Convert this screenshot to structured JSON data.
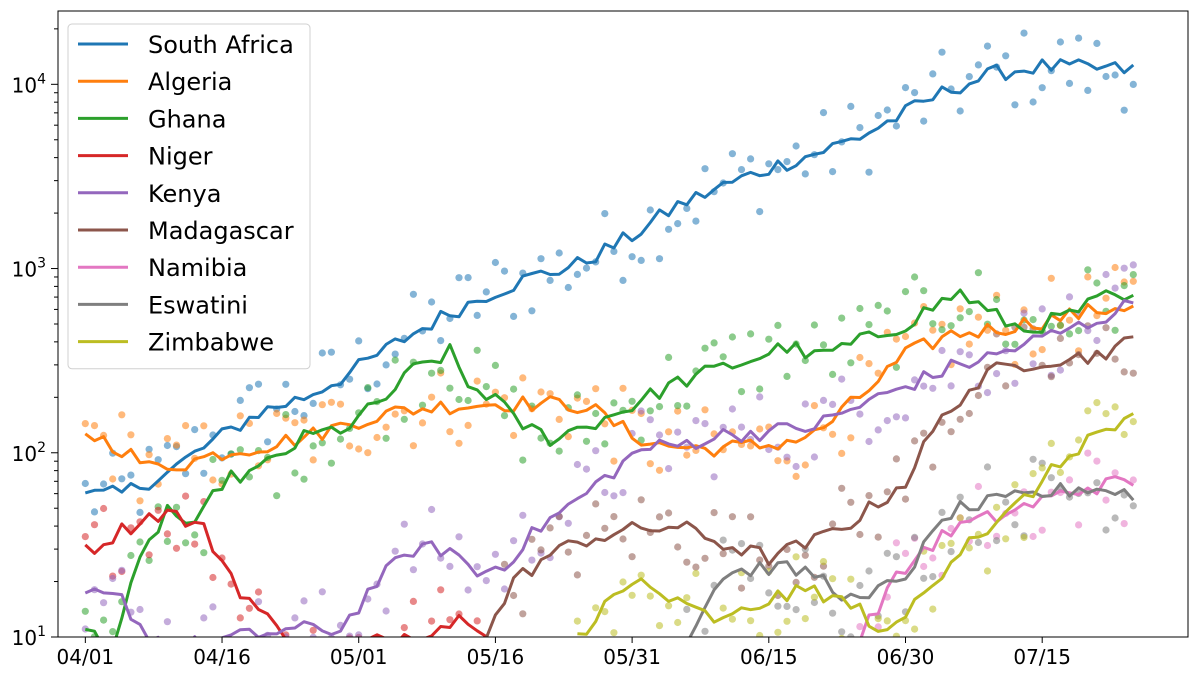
{
  "chart_data": {
    "type": "line",
    "title": "",
    "xlabel": "",
    "ylabel": "",
    "yscale": "log",
    "ylim": [
      10,
      25000
    ],
    "xlim": [
      "03/29",
      "07/31"
    ],
    "x_tick_labels": [
      "04/01",
      "04/16",
      "05/01",
      "05/16",
      "05/31",
      "06/15",
      "06/30",
      "07/15"
    ],
    "y_tick_labels": [
      {
        "base": "10",
        "exp": "1"
      },
      {
        "base": "10",
        "exp": "2"
      },
      {
        "base": "10",
        "exp": "3"
      },
      {
        "base": "10",
        "exp": "4"
      }
    ],
    "grid": false,
    "legend_position": "upper left",
    "marker_style": "daily values shown as faint dots, smoothed values shown as lines",
    "series": [
      {
        "name": "South Africa",
        "color": "#1f77b4",
        "points": [
          [
            "04/01",
            58
          ],
          [
            "04/05",
            60
          ],
          [
            "04/10",
            78
          ],
          [
            "04/15",
            115
          ],
          [
            "04/20",
            165
          ],
          [
            "04/25",
            200
          ],
          [
            "04/30",
            270
          ],
          [
            "05/05",
            390
          ],
          [
            "05/10",
            540
          ],
          [
            "05/15",
            720
          ],
          [
            "05/20",
            900
          ],
          [
            "05/25",
            1050
          ],
          [
            "05/31",
            1500
          ],
          [
            "06/05",
            2200
          ],
          [
            "06/10",
            2800
          ],
          [
            "06/15",
            3500
          ],
          [
            "06/20",
            4200
          ],
          [
            "06/25",
            5200
          ],
          [
            "06/30",
            7000
          ],
          [
            "07/05",
            9500
          ],
          [
            "07/10",
            11500
          ],
          [
            "07/15",
            12500
          ],
          [
            "07/20",
            12200
          ],
          [
            "07/25",
            12000
          ]
        ]
      },
      {
        "name": "Algeria",
        "color": "#ff7f0e",
        "points": [
          [
            "04/01",
            130
          ],
          [
            "04/05",
            105
          ],
          [
            "04/08",
            83
          ],
          [
            "04/12",
            88
          ],
          [
            "04/16",
            100
          ],
          [
            "04/21",
            110
          ],
          [
            "04/26",
            125
          ],
          [
            "05/01",
            150
          ],
          [
            "05/06",
            170
          ],
          [
            "05/11",
            180
          ],
          [
            "05/16",
            185
          ],
          [
            "05/21",
            185
          ],
          [
            "05/26",
            180
          ],
          [
            "05/31",
            125
          ],
          [
            "06/03",
            110
          ],
          [
            "06/08",
            105
          ],
          [
            "06/15",
            110
          ],
          [
            "06/20",
            125
          ],
          [
            "06/25",
            200
          ],
          [
            "06/30",
            340
          ],
          [
            "07/05",
            440
          ],
          [
            "07/10",
            470
          ],
          [
            "07/15",
            520
          ],
          [
            "07/20",
            580
          ],
          [
            "07/25",
            640
          ]
        ]
      },
      {
        "name": "Ghana",
        "color": "#2ca02c",
        "points": [
          [
            "04/01",
            11
          ],
          [
            "04/04",
            9
          ],
          [
            "04/07",
            25
          ],
          [
            "04/10",
            50
          ],
          [
            "04/13",
            38
          ],
          [
            "04/16",
            70
          ],
          [
            "04/20",
            80
          ],
          [
            "04/25",
            120
          ],
          [
            "04/30",
            140
          ],
          [
            "05/04",
            200
          ],
          [
            "05/07",
            280
          ],
          [
            "05/11",
            350
          ],
          [
            "05/13",
            230
          ],
          [
            "05/16",
            200
          ],
          [
            "05/18",
            150
          ],
          [
            "05/22",
            120
          ],
          [
            "05/26",
            140
          ],
          [
            "05/31",
            180
          ],
          [
            "06/04",
            230
          ],
          [
            "06/08",
            270
          ],
          [
            "06/13",
            320
          ],
          [
            "06/17",
            380
          ],
          [
            "06/20",
            330
          ],
          [
            "06/25",
            400
          ],
          [
            "06/30",
            500
          ],
          [
            "07/03",
            620
          ],
          [
            "07/06",
            740
          ],
          [
            "07/09",
            580
          ],
          [
            "07/13",
            460
          ],
          [
            "07/18",
            560
          ],
          [
            "07/22",
            700
          ],
          [
            "07/25",
            660
          ]
        ]
      },
      {
        "name": "Niger",
        "color": "#d62728",
        "points": [
          [
            "04/01",
            29
          ],
          [
            "04/05",
            38
          ],
          [
            "04/08",
            45
          ],
          [
            "04/10",
            48
          ],
          [
            "04/14",
            38
          ],
          [
            "04/18",
            18
          ],
          [
            "04/22",
            11
          ],
          [
            "04/26",
            9
          ],
          [
            "05/01",
            9
          ],
          [
            "05/05",
            10
          ],
          [
            "05/09",
            11
          ],
          [
            "05/13",
            13
          ],
          [
            "05/15",
            11
          ]
        ]
      },
      {
        "name": "Kenya",
        "color": "#9467bd",
        "points": [
          [
            "04/01",
            17
          ],
          [
            "04/05",
            16
          ],
          [
            "04/08",
            10
          ],
          [
            "04/12",
            9
          ],
          [
            "04/18",
            10
          ],
          [
            "04/24",
            11
          ],
          [
            "04/29",
            11
          ],
          [
            "05/03",
            20
          ],
          [
            "05/07",
            30
          ],
          [
            "05/11",
            30
          ],
          [
            "05/14",
            22
          ],
          [
            "05/17",
            25
          ],
          [
            "05/21",
            40
          ],
          [
            "05/25",
            55
          ],
          [
            "05/29",
            80
          ],
          [
            "06/01",
            105
          ],
          [
            "06/05",
            110
          ],
          [
            "06/10",
            125
          ],
          [
            "06/15",
            130
          ],
          [
            "06/20",
            140
          ],
          [
            "06/25",
            180
          ],
          [
            "06/30",
            230
          ],
          [
            "07/05",
            290
          ],
          [
            "07/10",
            340
          ],
          [
            "07/15",
            420
          ],
          [
            "07/20",
            500
          ],
          [
            "07/25",
            650
          ]
        ]
      },
      {
        "name": "Madagascar",
        "color": "#8c564b",
        "points": [
          [
            "05/15",
            10
          ],
          [
            "05/18",
            20
          ],
          [
            "05/22",
            28
          ],
          [
            "05/26",
            34
          ],
          [
            "05/31",
            38
          ],
          [
            "06/05",
            40
          ],
          [
            "06/10",
            32
          ],
          [
            "06/15",
            27
          ],
          [
            "06/20",
            33
          ],
          [
            "06/25",
            45
          ],
          [
            "06/30",
            70
          ],
          [
            "07/03",
            130
          ],
          [
            "07/06",
            200
          ],
          [
            "07/10",
            280
          ],
          [
            "07/15",
            320
          ],
          [
            "07/20",
            330
          ],
          [
            "07/25",
            400
          ]
        ]
      },
      {
        "name": "Namibia",
        "color": "#e377c2",
        "points": [
          [
            "06/25",
            10
          ],
          [
            "06/28",
            18
          ],
          [
            "07/02",
            30
          ],
          [
            "07/06",
            40
          ],
          [
            "07/10",
            45
          ],
          [
            "07/15",
            55
          ],
          [
            "07/20",
            65
          ],
          [
            "07/25",
            70
          ]
        ]
      },
      {
        "name": "Eswatini",
        "color": "#7f7f7f",
        "points": [
          [
            "06/06",
            10
          ],
          [
            "06/10",
            22
          ],
          [
            "06/15",
            24
          ],
          [
            "06/20",
            22
          ],
          [
            "06/25",
            15
          ],
          [
            "06/30",
            22
          ],
          [
            "07/05",
            48
          ],
          [
            "07/10",
            54
          ],
          [
            "07/15",
            60
          ],
          [
            "07/20",
            65
          ],
          [
            "07/25",
            60
          ]
        ]
      },
      {
        "name": "Zimbabwe",
        "color": "#bcbd22",
        "points": [
          [
            "05/25",
            10
          ],
          [
            "05/28",
            15
          ],
          [
            "06/01",
            20
          ],
          [
            "06/05",
            15
          ],
          [
            "06/10",
            12
          ],
          [
            "06/15",
            16
          ],
          [
            "06/20",
            18
          ],
          [
            "06/25",
            14
          ],
          [
            "06/28",
            10
          ],
          [
            "07/03",
            20
          ],
          [
            "07/07",
            35
          ],
          [
            "07/10",
            40
          ],
          [
            "07/15",
            70
          ],
          [
            "07/20",
            120
          ],
          [
            "07/25",
            150
          ]
        ]
      }
    ]
  }
}
